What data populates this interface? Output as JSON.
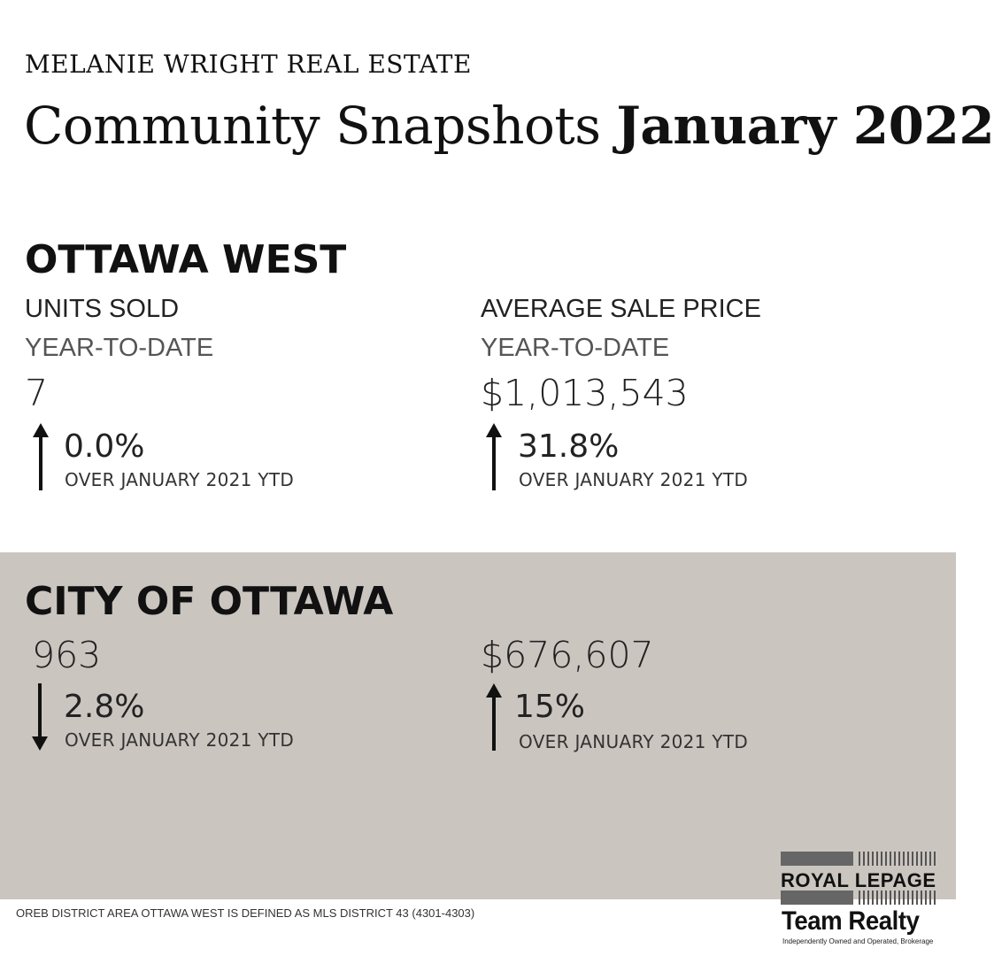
{
  "header": {
    "brand": "MELANIE WRIGHT REAL ESTATE",
    "headline_light": "Community Snapshots",
    "headline_bold": "January 2022"
  },
  "ottawa_west": {
    "title": "OTTAWA WEST",
    "units": {
      "label": "UNITS SOLD",
      "sublabel": "YEAR-TO-DATE",
      "value": "7",
      "change": "0.0%",
      "direction": "up",
      "comparison": "OVER JANUARY 2021 YTD"
    },
    "price": {
      "label": "AVERAGE SALE PRICE",
      "sublabel": "YEAR-TO-DATE",
      "value": "$1,013,543",
      "change": "31.8%",
      "direction": "up",
      "comparison": "OVER JANUARY 2021 YTD"
    }
  },
  "city_of_ottawa": {
    "title": "CITY OF OTTAWA",
    "units": {
      "value": "963",
      "change": "2.8%",
      "direction": "down",
      "comparison": "OVER JANUARY 2021 YTD"
    },
    "price": {
      "value": "$676,607",
      "change": "15%",
      "direction": "up",
      "comparison": "OVER JANUARY 2021 YTD"
    }
  },
  "footnote": "OREB DISTRICT AREA OTTAWA WEST IS DEFINED AS MLS DISTRICT 43 (4301-4303)",
  "logo": {
    "line1": "ROYAL LEPAGE",
    "line2": "Team Realty",
    "tagline": "Independently Owned and Operated, Brokerage"
  },
  "colors": {
    "panel_background": "#cbc5c0",
    "text": "#111111"
  },
  "icons": {
    "up": "arrow-up-icon",
    "down": "arrow-down-icon"
  }
}
